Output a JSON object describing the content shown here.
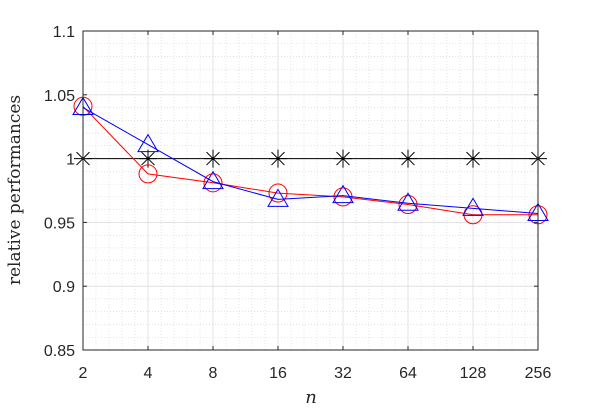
{
  "chart_data": {
    "type": "line",
    "xlabel": "n",
    "ylabel": "relative performances",
    "x_scale": "log2",
    "x": [
      2,
      4,
      8,
      16,
      32,
      64,
      128,
      256
    ],
    "x_tick_labels": [
      "2",
      "4",
      "8",
      "16",
      "32",
      "64",
      "128",
      "256"
    ],
    "ylim": [
      0.85,
      1.1
    ],
    "y_ticks": [
      0.85,
      0.9,
      0.95,
      1.0,
      1.05,
      1.1
    ],
    "y_tick_labels": [
      "0.85",
      "0.9",
      "0.95",
      "1",
      "1.05",
      "1.1"
    ],
    "grid": true,
    "minor_grid": true,
    "series": [
      {
        "marker": "asterisk",
        "color": "#000000",
        "values": [
          1.0,
          1.0,
          1.0,
          1.0,
          1.0,
          1.0,
          1.0,
          1.0
        ]
      },
      {
        "marker": "circle",
        "color": "#ff0000",
        "values": [
          1.041,
          0.988,
          0.981,
          0.973,
          0.97,
          0.964,
          0.956,
          0.956
        ]
      },
      {
        "marker": "triangle",
        "color": "#0000ff",
        "values": [
          1.04,
          1.011,
          0.982,
          0.968,
          0.971,
          0.965,
          0.961,
          0.957
        ]
      }
    ]
  }
}
